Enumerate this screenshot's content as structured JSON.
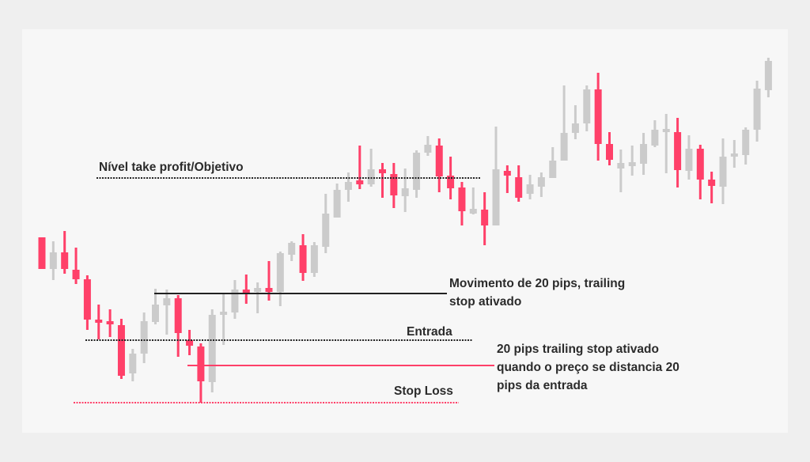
{
  "colors": {
    "bullish": "#cbcbcb",
    "bearish": "#ff4069",
    "level_line": "#222222",
    "stop_line": "#ff4069",
    "background": "#f7f7f7"
  },
  "labels": {
    "take_profit": "Nível take profit/Objetivo",
    "movement_line1": "Movimento de 20 pips, trailing",
    "movement_line2": "stop ativado",
    "entry": "Entrada",
    "trailing_line1": "20 pips trailing stop ativado",
    "trailing_line2": "quando o preço se distancia 20",
    "trailing_line3": "pips da entrada",
    "stop_loss": "Stop Loss"
  },
  "chart_data": {
    "type": "candlestick",
    "levels": {
      "take_profit": 375,
      "movement_20_pips": 229,
      "entry": 170,
      "trailing_stop": 138,
      "stop_loss": 91
    },
    "candles": [
      {
        "o": 300,
        "h": 300,
        "l": 260,
        "c": 260
      },
      {
        "o": 260,
        "h": 295,
        "l": 246,
        "c": 281
      },
      {
        "o": 281,
        "h": 308,
        "l": 254,
        "c": 260
      },
      {
        "o": 259,
        "h": 287,
        "l": 241,
        "c": 247
      },
      {
        "o": 247,
        "h": 252,
        "l": 183,
        "c": 196
      },
      {
        "o": 196,
        "h": 215,
        "l": 171,
        "c": 193
      },
      {
        "o": 194,
        "h": 209,
        "l": 174,
        "c": 190
      },
      {
        "o": 189,
        "h": 197,
        "l": 121,
        "c": 125
      },
      {
        "o": 128,
        "h": 159,
        "l": 118,
        "c": 153
      },
      {
        "o": 153,
        "h": 205,
        "l": 141,
        "c": 194
      },
      {
        "o": 193,
        "h": 235,
        "l": 190,
        "c": 215
      },
      {
        "o": 214,
        "h": 234,
        "l": 177,
        "c": 223
      },
      {
        "o": 223,
        "h": 227,
        "l": 149,
        "c": 179
      },
      {
        "o": 170,
        "h": 183,
        "l": 151,
        "c": 163
      },
      {
        "o": 162,
        "h": 166,
        "l": 91,
        "c": 118
      },
      {
        "o": 117,
        "h": 209,
        "l": 104,
        "c": 202
      },
      {
        "o": 203,
        "h": 228,
        "l": 164,
        "c": 206
      },
      {
        "o": 205,
        "h": 246,
        "l": 197,
        "c": 234
      },
      {
        "o": 234,
        "h": 253,
        "l": 216,
        "c": 230
      },
      {
        "o": 231,
        "h": 243,
        "l": 204,
        "c": 236
      },
      {
        "o": 236,
        "h": 270,
        "l": 220,
        "c": 231
      },
      {
        "o": 231,
        "h": 282,
        "l": 213,
        "c": 280
      },
      {
        "o": 278,
        "h": 295,
        "l": 270,
        "c": 293
      },
      {
        "o": 290,
        "h": 304,
        "l": 245,
        "c": 255
      },
      {
        "o": 255,
        "h": 294,
        "l": 250,
        "c": 290
      },
      {
        "o": 288,
        "h": 355,
        "l": 280,
        "c": 330
      },
      {
        "o": 325,
        "h": 368,
        "l": 325,
        "c": 360
      },
      {
        "o": 360,
        "h": 382,
        "l": 345,
        "c": 370
      },
      {
        "o": 372,
        "h": 416,
        "l": 361,
        "c": 367
      },
      {
        "o": 367,
        "h": 412,
        "l": 364,
        "c": 386
      },
      {
        "o": 386,
        "h": 394,
        "l": 350,
        "c": 381
      },
      {
        "o": 380,
        "h": 394,
        "l": 337,
        "c": 353
      },
      {
        "o": 352,
        "h": 387,
        "l": 332,
        "c": 362
      },
      {
        "o": 360,
        "h": 410,
        "l": 350,
        "c": 407
      },
      {
        "o": 407,
        "h": 428,
        "l": 403,
        "c": 417
      },
      {
        "o": 416,
        "h": 425,
        "l": 357,
        "c": 377
      },
      {
        "o": 378,
        "h": 402,
        "l": 348,
        "c": 362
      },
      {
        "o": 363,
        "h": 370,
        "l": 315,
        "c": 333
      },
      {
        "o": 330,
        "h": 363,
        "l": 329,
        "c": 336
      },
      {
        "o": 335,
        "h": 357,
        "l": 290,
        "c": 315
      },
      {
        "o": 315,
        "h": 440,
        "l": 315,
        "c": 386
      },
      {
        "o": 384,
        "h": 391,
        "l": 356,
        "c": 378
      },
      {
        "o": 376,
        "h": 391,
        "l": 345,
        "c": 350
      },
      {
        "o": 355,
        "h": 379,
        "l": 348,
        "c": 367
      },
      {
        "o": 364,
        "h": 382,
        "l": 351,
        "c": 376
      },
      {
        "o": 375,
        "h": 414,
        "l": 375,
        "c": 397
      },
      {
        "o": 397,
        "h": 492,
        "l": 397,
        "c": 432
      },
      {
        "o": 432,
        "h": 467,
        "l": 424,
        "c": 444
      },
      {
        "o": 444,
        "h": 492,
        "l": 434,
        "c": 487
      },
      {
        "o": 487,
        "h": 508,
        "l": 397,
        "c": 418
      },
      {
        "o": 418,
        "h": 433,
        "l": 391,
        "c": 398
      },
      {
        "o": 387,
        "h": 411,
        "l": 357,
        "c": 394
      },
      {
        "o": 390,
        "h": 416,
        "l": 378,
        "c": 395
      },
      {
        "o": 393,
        "h": 432,
        "l": 379,
        "c": 418
      },
      {
        "o": 416,
        "h": 448,
        "l": 414,
        "c": 436
      },
      {
        "o": 434,
        "h": 456,
        "l": 381,
        "c": 437
      },
      {
        "o": 433,
        "h": 451,
        "l": 363,
        "c": 385
      },
      {
        "o": 384,
        "h": 429,
        "l": 373,
        "c": 412
      },
      {
        "o": 412,
        "h": 417,
        "l": 348,
        "c": 373
      },
      {
        "o": 373,
        "h": 383,
        "l": 343,
        "c": 365
      },
      {
        "o": 364,
        "h": 425,
        "l": 342,
        "c": 402
      },
      {
        "o": 402,
        "h": 423,
        "l": 388,
        "c": 406
      },
      {
        "o": 404,
        "h": 439,
        "l": 392,
        "c": 436
      },
      {
        "o": 436,
        "h": 498,
        "l": 421,
        "c": 488
      },
      {
        "o": 486,
        "h": 527,
        "l": 477,
        "c": 523
      }
    ]
  }
}
